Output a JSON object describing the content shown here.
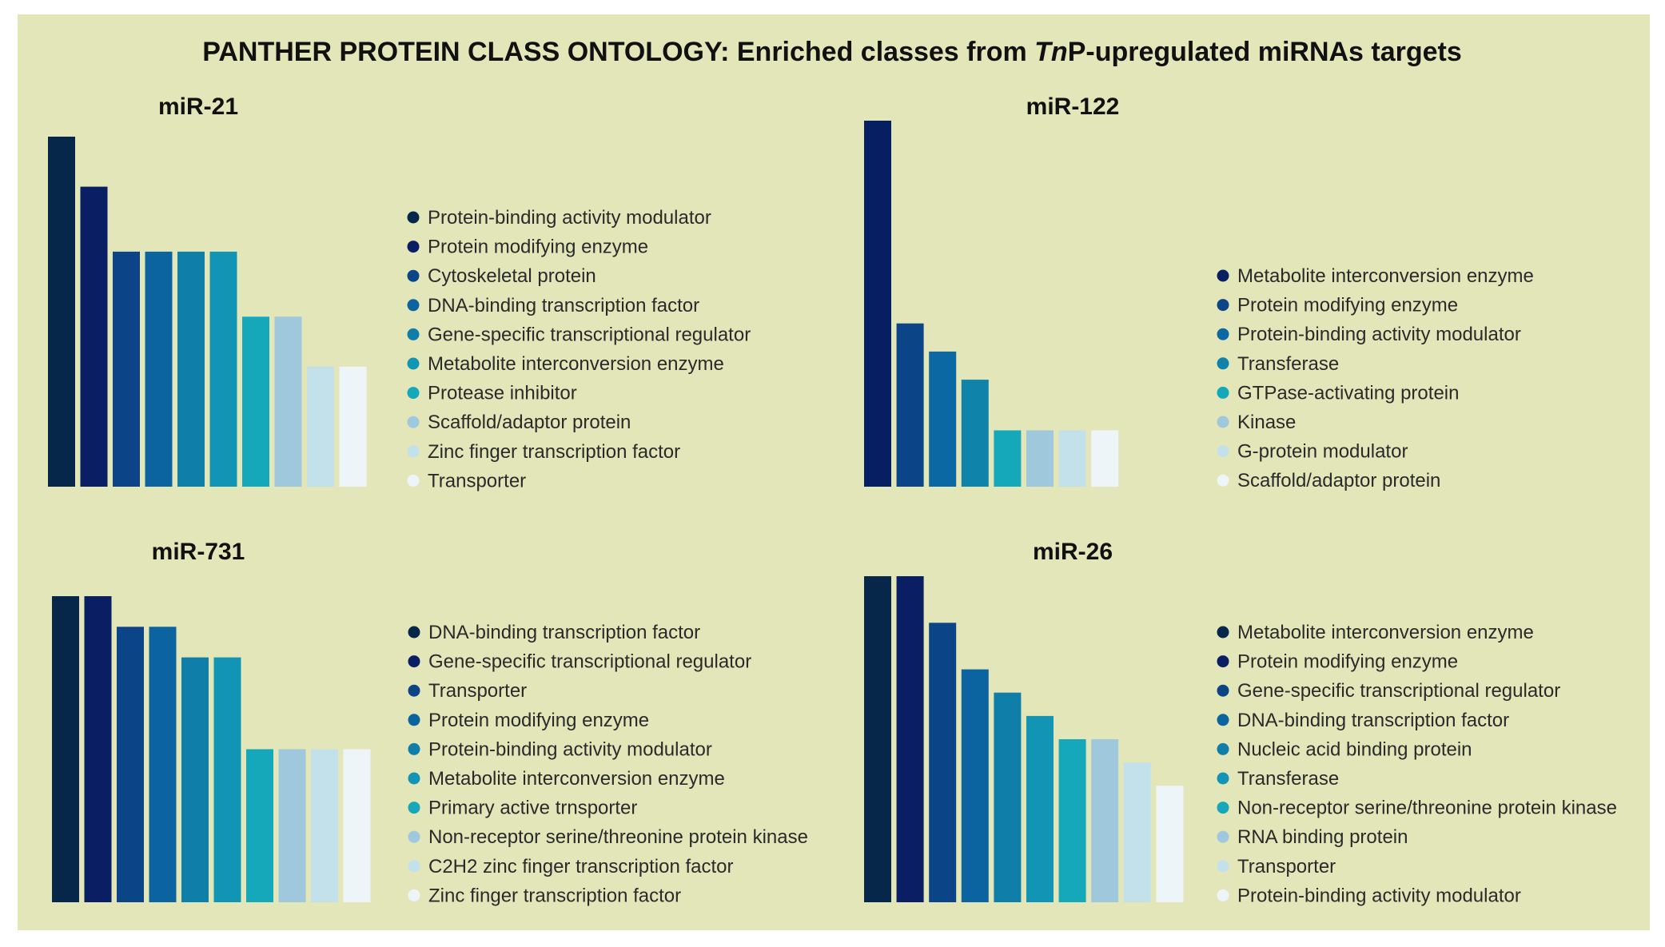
{
  "title": {
    "prefix": "PANTHER PROTEIN CLASS ONTOLOGY: Enriched classes from ",
    "italic": "Tn",
    "suffix": "P-upregulated miRNAs targets"
  },
  "chart_data": [
    {
      "type": "bar",
      "title": "miR-21",
      "categories": [
        "Protein-binding activity modulator",
        "Protein modifying enzyme",
        "Cytoskeletal protein",
        "DNA-binding transcription factor",
        "Gene-specific transcriptional regulator",
        "Metabolite interconversion enzyme",
        "Protease inhibitor",
        "Scaffold/adaptor protein",
        "Zinc finger transcription factor",
        "Transporter"
      ],
      "values": [
        7,
        6,
        4.7,
        4.7,
        4.7,
        4.7,
        3.4,
        3.4,
        2.4,
        2.4
      ],
      "colors": [
        "#06264a",
        "#0a1f63",
        "#0b4588",
        "#0b64a0",
        "#0f7ea8",
        "#1295b5",
        "#15a8ba",
        "#9fc8dc",
        "#c3e1ea",
        "#eef5f9"
      ],
      "legend": "right"
    },
    {
      "type": "bar",
      "title": "miR-122",
      "categories": [
        "Metabolite interconversion enzyme",
        "Protein modifying enzyme",
        "Protein-binding activity modulator",
        "Transferase",
        "GTPase-activating protein",
        "Kinase",
        "G-protein modulator",
        "Scaffold/adaptor protein"
      ],
      "values": [
        6.5,
        2.9,
        2.4,
        1.9,
        1,
        1,
        1,
        1
      ],
      "colors": [
        "#061f63",
        "#0b4588",
        "#0b68a2",
        "#0f83aa",
        "#15a8ba",
        "#9fc8dc",
        "#c3e1ea",
        "#eef5f9"
      ],
      "legend": "right"
    },
    {
      "type": "bar",
      "title": "miR-731",
      "categories": [
        "DNA-binding transcription factor",
        "Gene-specific transcriptional regulator",
        "Transporter",
        "Protein modifying enzyme",
        "Protein-binding activity modulator",
        "Metabolite interconversion enzyme",
        "Primary active trnsporter",
        "Non-receptor serine/threonine protein kinase",
        "C2H2 zinc finger transcription factor",
        "Zinc finger transcription factor"
      ],
      "values": [
        5,
        5,
        4.5,
        4.5,
        4,
        4,
        2.5,
        2.5,
        2.5,
        2.5
      ],
      "colors": [
        "#06264a",
        "#0a1f63",
        "#0b4588",
        "#0b64a0",
        "#0f7ea8",
        "#1295b5",
        "#15a8ba",
        "#9fc8dc",
        "#c3e1ea",
        "#eef5f9"
      ],
      "legend": "right"
    },
    {
      "type": "bar",
      "title": "miR-26",
      "categories": [
        "Metabolite interconversion enzyme",
        "Protein modifying enzyme",
        "Gene-specific transcriptional regulator",
        "DNA-binding transcription factor",
        "Nucleic acid binding protein",
        "Transferase",
        "Non-receptor serine/threonine protein kinase",
        "RNA binding protein",
        "Transporter",
        "Protein-binding activity modulator"
      ],
      "values": [
        7,
        7,
        6,
        5,
        4.5,
        4,
        3.5,
        3.5,
        3,
        2.5
      ],
      "colors": [
        "#06264a",
        "#0a1f63",
        "#0b4588",
        "#0b64a0",
        "#0f7ea8",
        "#1295b5",
        "#15a8ba",
        "#9fc8dc",
        "#c3e1ea",
        "#eef5f9"
      ],
      "legend": "right"
    }
  ]
}
